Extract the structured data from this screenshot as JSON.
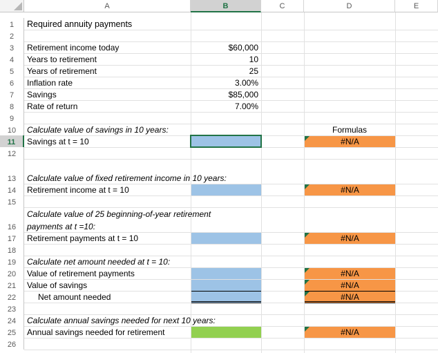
{
  "columns": [
    "A",
    "B",
    "C",
    "D",
    "E"
  ],
  "rows": [
    "1",
    "2",
    "3",
    "4",
    "5",
    "6",
    "7",
    "8",
    "9",
    "10",
    "11",
    "12",
    "13",
    "14",
    "15",
    "16",
    "17",
    "18",
    "19",
    "20",
    "21",
    "22",
    "23",
    "24",
    "25",
    "26"
  ],
  "cells": {
    "a1": "Required annuity payments",
    "a3": "Retirement income today",
    "b3": "$60,000",
    "a4": "Years to retirement",
    "b4": "10",
    "a5": "Years of retirement",
    "b5": "25",
    "a6": "Inflation rate",
    "b6": "3.00%",
    "a7": "Savings",
    "b7": "$85,000",
    "a8": "Rate of return",
    "b8": "7.00%",
    "a10": "Calculate value of savings in 10 years:",
    "d10": "Formulas",
    "a11": "Savings at t = 10",
    "d11": "#N/A",
    "a13": "Calculate value of fixed retirement income in 10 years:",
    "a14": "Retirement income at t = 10",
    "d14": "#N/A",
    "a16_line1": "Calculate value of 25 beginning-of-year retirement",
    "a16_line2": "payments at t =10:",
    "a17": "Retirement payments at t = 10",
    "d17": "#N/A",
    "a19": "Calculate net amount needed at t = 10:",
    "a20": "Value of retirement payments",
    "d20": "#N/A",
    "a21": "Value of savings",
    "d21": "#N/A",
    "a22": "Net amount needed",
    "d22": "#N/A",
    "a24": "Calculate annual savings needed for next 10 years:",
    "a25": "Annual savings needed for retirement",
    "d25": "#N/A"
  },
  "selection": {
    "column": "B",
    "row": "11"
  },
  "colors": {
    "blue_fill": "#9dc3e6",
    "green_fill": "#92d050",
    "orange_fill": "#f79646",
    "excel_green": "#217346"
  }
}
